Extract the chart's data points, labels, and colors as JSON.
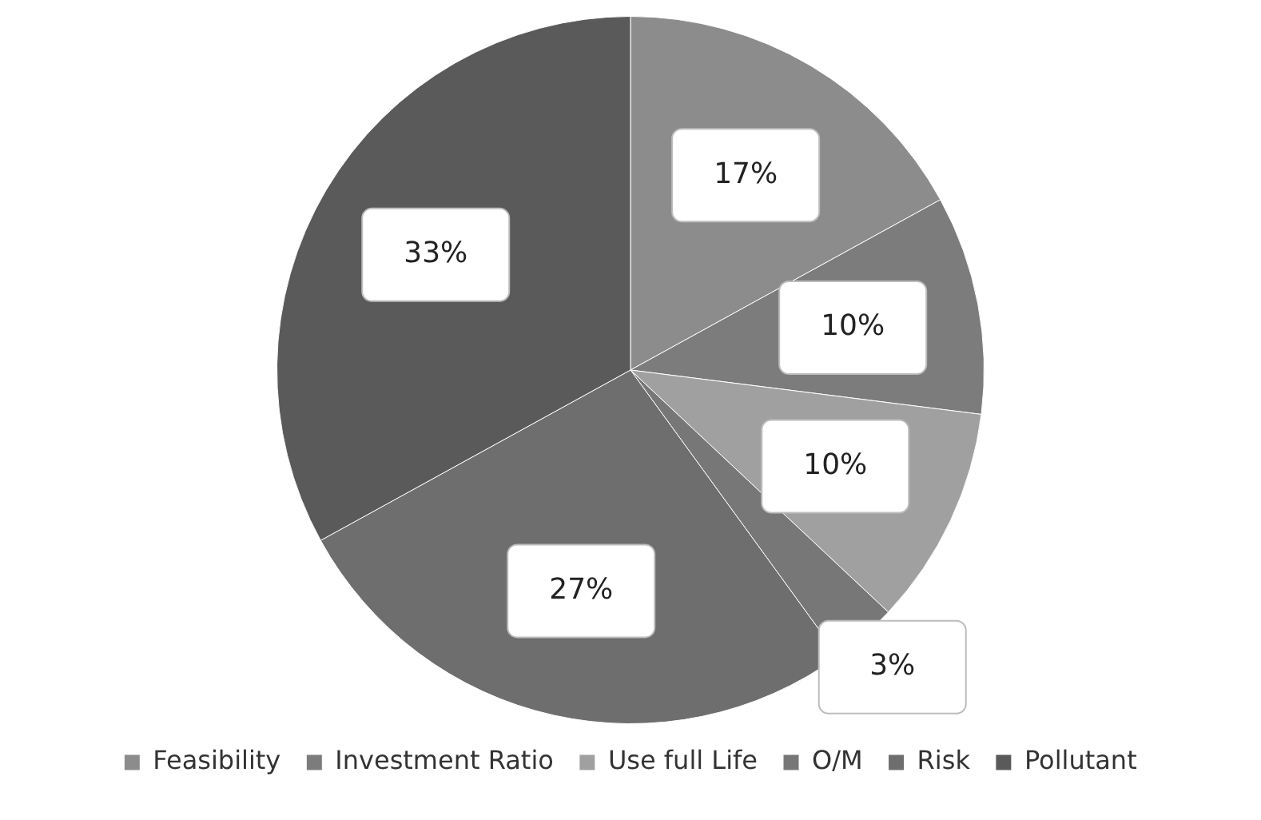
{
  "chart_data": {
    "type": "pie",
    "categories": [
      "Feasibility",
      "Investment Ratio",
      "Use full Life",
      "O/M",
      "Risk",
      "Pollutant"
    ],
    "values": [
      17,
      10,
      10,
      3,
      27,
      33
    ],
    "colors": [
      "#8c8c8c",
      "#7c7c7c",
      "#a0a0a0",
      "#777777",
      "#6e6e6e",
      "#5a5a5a"
    ],
    "value_labels": [
      "17%",
      "10%",
      "10%",
      "3%",
      "27%",
      "33%"
    ],
    "legend": "bottom"
  }
}
